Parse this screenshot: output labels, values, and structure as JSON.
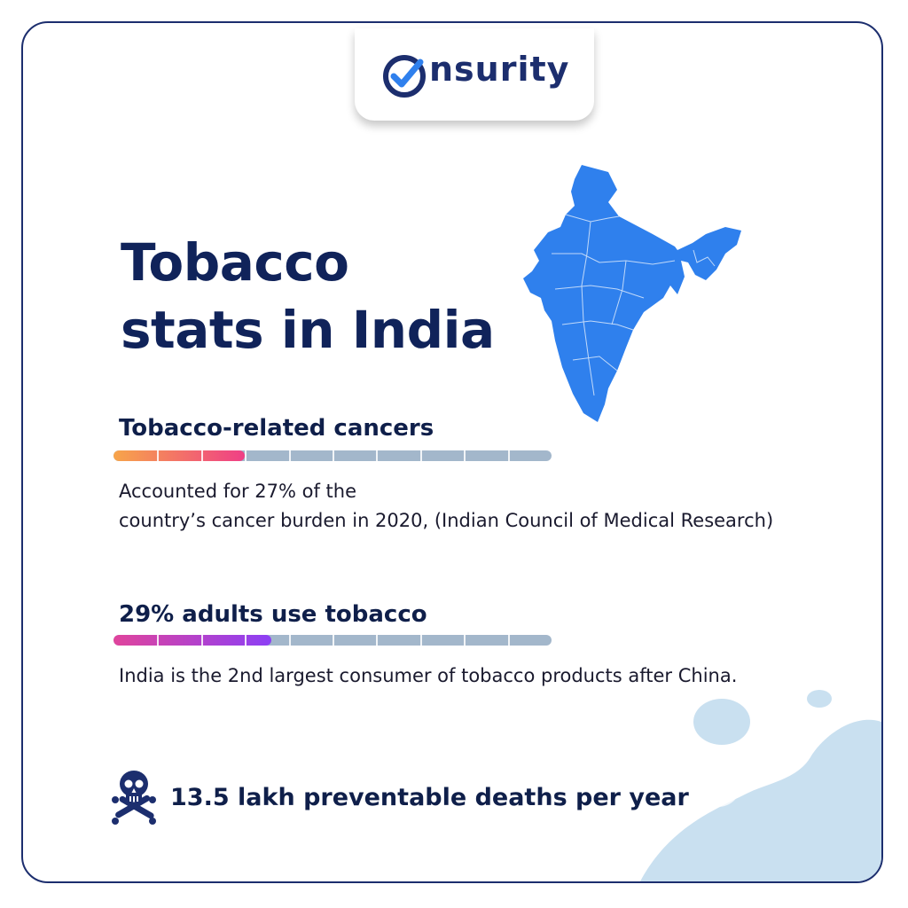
{
  "brand": {
    "name": "nsurity",
    "icon": "check-circle-icon"
  },
  "title": {
    "line1": "Tobacco",
    "line2": "stats in India"
  },
  "stats": [
    {
      "heading": "Tobacco-related cancers",
      "level_percent": 30,
      "gradient": [
        "#f7a54a",
        "#ef3f86"
      ],
      "desc_line1": "Accounted for 27% of the",
      "desc_line2": "country’s cancer burden in 2020, (Indian Council of Medical Research)"
    },
    {
      "heading": "29% adults use tobacco",
      "level_percent": 36,
      "gradient": [
        "#e0449c",
        "#8c3ff5"
      ],
      "desc_line1": "India is the 2nd largest consumer of tobacco products after China."
    }
  ],
  "deaths": {
    "icon": "skull-crossbones-icon",
    "text": "13.5 lakh preventable deaths per year"
  },
  "colors": {
    "navy": "#1c2e6e",
    "map": "#2f80ed",
    "bar_track": "#a3b7cb",
    "blob": "#c9e0f0"
  }
}
